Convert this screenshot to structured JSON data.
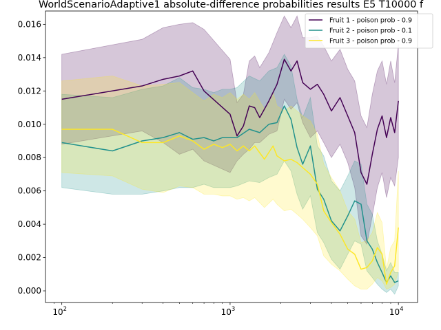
{
  "chart_data": {
    "type": "line",
    "title": "WorldScenarioAdaptive1 absolute-difference probabilities results E5 T10000 f",
    "xlabel": "",
    "ylabel": "",
    "xscale": "log",
    "xlim": [
      80,
      13000
    ],
    "ylim": [
      -0.0007,
      0.0168
    ],
    "x_ticks": [
      {
        "value": 100,
        "base": "10",
        "exp": "2"
      },
      {
        "value": 1000,
        "base": "10",
        "exp": "3"
      },
      {
        "value": 10000,
        "base": "10",
        "exp": "4"
      }
    ],
    "y_ticks": [
      {
        "value": 0.0,
        "label": "0.000"
      },
      {
        "value": 0.002,
        "label": "0.002"
      },
      {
        "value": 0.004,
        "label": "0.004"
      },
      {
        "value": 0.006,
        "label": "0.006"
      },
      {
        "value": 0.008,
        "label": "0.008"
      },
      {
        "value": 0.01,
        "label": "0.010"
      },
      {
        "value": 0.012,
        "label": "0.012"
      },
      {
        "value": 0.014,
        "label": "0.014"
      },
      {
        "value": 0.016,
        "label": "0.016"
      }
    ],
    "legend_position": "top-right",
    "series": [
      {
        "name": "Fruit 1 - poison prob  - 0.9",
        "color": "#440154",
        "x": [
          100,
          300,
          400,
          500,
          600,
          700,
          1000,
          1100,
          1200,
          1300,
          1400,
          1500,
          1700,
          1900,
          2100,
          2300,
          2500,
          2700,
          3000,
          3300,
          3600,
          4000,
          4500,
          5000,
          5500,
          6000,
          6500,
          7000,
          7500,
          8000,
          8500,
          9000,
          9500,
          10000
        ],
        "y": [
          0.0115,
          0.0123,
          0.0127,
          0.0129,
          0.0132,
          0.012,
          0.0106,
          0.0093,
          0.0099,
          0.0111,
          0.011,
          0.0104,
          0.0114,
          0.0124,
          0.0139,
          0.0132,
          0.0138,
          0.0125,
          0.0121,
          0.0124,
          0.0118,
          0.0108,
          0.0116,
          0.0105,
          0.0095,
          0.0071,
          0.0064,
          0.0082,
          0.0097,
          0.0105,
          0.0092,
          0.0104,
          0.0095,
          0.0114
        ],
        "lower": [
          0.0088,
          0.0096,
          0.0089,
          0.0082,
          0.0085,
          0.0078,
          0.0071,
          0.0078,
          0.0082,
          0.0085,
          0.0089,
          0.0089,
          0.0094,
          0.0096,
          0.0115,
          0.0109,
          0.0113,
          0.0101,
          0.0092,
          0.0096,
          0.0089,
          0.008,
          0.0088,
          0.0077,
          0.0062,
          0.0033,
          0.0028,
          0.0045,
          0.0062,
          0.0071,
          0.0056,
          0.0068,
          0.0063,
          0.008
        ],
        "upper": [
          0.0142,
          0.0151,
          0.0158,
          0.016,
          0.0161,
          0.0157,
          0.0139,
          0.0113,
          0.0118,
          0.0138,
          0.0141,
          0.0134,
          0.0143,
          0.0155,
          0.0165,
          0.0158,
          0.0165,
          0.0152,
          0.0152,
          0.0153,
          0.0147,
          0.0138,
          0.0145,
          0.0133,
          0.0126,
          0.0105,
          0.0098,
          0.0118,
          0.0132,
          0.0138,
          0.0124,
          0.0138,
          0.0125,
          0.0148
        ]
      },
      {
        "name": "Fruit 2 - poison prob  - 0.1",
        "color": "#21918c",
        "x": [
          100,
          200,
          300,
          400,
          500,
          600,
          700,
          800,
          900,
          1000,
          1100,
          1300,
          1500,
          1700,
          1900,
          2100,
          2300,
          2500,
          2700,
          3000,
          3300,
          3600,
          4000,
          4500,
          5000,
          5500,
          6000,
          6500,
          7000,
          7500,
          8000,
          8500,
          9000,
          9500,
          10000
        ],
        "y": [
          0.0089,
          0.0084,
          0.009,
          0.0092,
          0.0095,
          0.0091,
          0.0092,
          0.009,
          0.0092,
          0.0092,
          0.0092,
          0.0097,
          0.0095,
          0.01,
          0.0101,
          0.0111,
          0.0103,
          0.0086,
          0.0076,
          0.0087,
          0.0061,
          0.0055,
          0.0042,
          0.0036,
          0.0045,
          0.0054,
          0.0052,
          0.003,
          0.0025,
          0.0017,
          0.0011,
          0.0005,
          0.0009,
          0.0005,
          0.0006
        ],
        "lower": [
          0.0062,
          0.0058,
          0.0058,
          0.006,
          0.0062,
          0.0062,
          0.0064,
          0.0062,
          0.0062,
          0.0062,
          0.0063,
          0.0066,
          0.0065,
          0.0068,
          0.007,
          0.0078,
          0.0072,
          0.0058,
          0.0049,
          0.0057,
          0.0035,
          0.0029,
          0.0019,
          0.0013,
          0.0022,
          0.003,
          0.0028,
          0.0012,
          0.0008,
          0.0004,
          0.0001,
          -0.0001,
          0.0001,
          -0.0002,
          0.0003
        ],
        "upper": [
          0.0118,
          0.0116,
          0.0121,
          0.0123,
          0.0128,
          0.0122,
          0.0121,
          0.0119,
          0.0121,
          0.0121,
          0.0122,
          0.0129,
          0.0126,
          0.0132,
          0.0134,
          0.0142,
          0.0135,
          0.0115,
          0.0104,
          0.0116,
          0.0087,
          0.0081,
          0.0066,
          0.006,
          0.0069,
          0.0078,
          0.0076,
          0.0052,
          0.0046,
          0.003,
          0.0022,
          0.0012,
          0.0017,
          0.0011,
          0.0011
        ]
      },
      {
        "name": "Fruit 3 - poison prob  - 0.9",
        "color": "#fde725",
        "x": [
          100,
          200,
          300,
          400,
          500,
          600,
          700,
          800,
          900,
          1000,
          1100,
          1200,
          1300,
          1400,
          1600,
          1800,
          1900,
          2100,
          2300,
          2500,
          2700,
          3000,
          3300,
          3600,
          4000,
          4500,
          5000,
          5500,
          6000,
          6500,
          7000,
          7500,
          8000,
          8500,
          9000,
          9500,
          10000
        ],
        "y": [
          0.0097,
          0.0097,
          0.0089,
          0.0089,
          0.0093,
          0.009,
          0.0085,
          0.0088,
          0.0086,
          0.0088,
          0.0084,
          0.0087,
          0.0084,
          0.0087,
          0.0079,
          0.0087,
          0.0081,
          0.0078,
          0.0079,
          0.0077,
          0.0074,
          0.007,
          0.0064,
          0.0048,
          0.0041,
          0.0034,
          0.0025,
          0.0022,
          0.0013,
          0.0014,
          0.0018,
          0.0026,
          0.0022,
          0.0004,
          0.0011,
          0.0015,
          0.0038
        ],
        "lower": [
          0.0071,
          0.0069,
          0.0061,
          0.0059,
          0.0063,
          0.0062,
          0.0058,
          0.0058,
          0.0057,
          0.0057,
          0.0055,
          0.0056,
          0.0054,
          0.0056,
          0.005,
          0.0055,
          0.0052,
          0.0048,
          0.0049,
          0.0046,
          0.0043,
          0.0038,
          0.0033,
          0.0021,
          0.0016,
          0.0012,
          0.0007,
          0.0003,
          0.0001,
          0.0001,
          0.0004,
          0.0008,
          0.0006,
          0.0001,
          0.0002,
          0.0004,
          0.0012
        ],
        "upper": [
          0.0126,
          0.0129,
          0.0123,
          0.0124,
          0.0125,
          0.0119,
          0.0114,
          0.0118,
          0.0116,
          0.0119,
          0.0115,
          0.0118,
          0.0115,
          0.0119,
          0.0109,
          0.0119,
          0.0111,
          0.0108,
          0.0111,
          0.0108,
          0.0105,
          0.0102,
          0.0094,
          0.0076,
          0.0068,
          0.006,
          0.0048,
          0.0043,
          0.0029,
          0.003,
          0.0035,
          0.0047,
          0.0041,
          0.0013,
          0.0026,
          0.003,
          0.0072
        ]
      }
    ]
  }
}
